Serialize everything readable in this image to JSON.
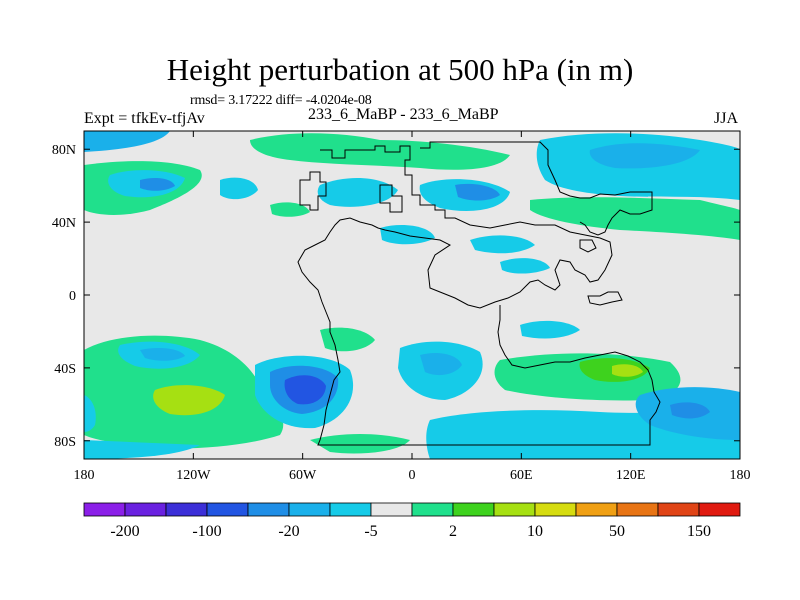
{
  "title": "Height perturbation at 500 hPa (in m)",
  "stats": "rmsd= 3.17222  diff= -4.0204e-08",
  "expt": "Expt = tfkEv-tfjAv",
  "case": "233_6_MaBP - 233_6_MaBP",
  "season": "JJA",
  "map": {
    "lon_range": [
      -180,
      180
    ],
    "lat_range": [
      -90,
      90
    ],
    "lon_ticks": [
      {
        "value": -180,
        "label": "180"
      },
      {
        "value": -120,
        "label": "120W"
      },
      {
        "value": -60,
        "label": "60W"
      },
      {
        "value": 0,
        "label": "0"
      },
      {
        "value": 60,
        "label": "60E"
      },
      {
        "value": 120,
        "label": "120E"
      },
      {
        "value": 180,
        "label": "180"
      }
    ],
    "lat_ticks": [
      {
        "value": 80,
        "label": "80N"
      },
      {
        "value": 40,
        "label": "40N"
      },
      {
        "value": 0,
        "label": "0"
      },
      {
        "value": -40,
        "label": "40S"
      },
      {
        "value": -80,
        "label": "80S"
      }
    ],
    "background_color": "#e8e8e8"
  },
  "colorbar": {
    "colors": [
      "#8b1fe8",
      "#6a21e0",
      "#3c2fd8",
      "#2255e2",
      "#1f8ee6",
      "#1ab0ea",
      "#16cbe8",
      "#e8e8e8",
      "#20e08c",
      "#3ed21e",
      "#a6e012",
      "#d6dc10",
      "#f0a014",
      "#e87414",
      "#e04416",
      "#e01a10"
    ],
    "labels": [
      {
        "after_box": 1,
        "text": "-200"
      },
      {
        "after_box": 3,
        "text": "-100"
      },
      {
        "after_box": 5,
        "text": "-20"
      },
      {
        "after_box": 7,
        "text": "-5"
      },
      {
        "after_box": 9,
        "text": "2"
      },
      {
        "after_box": 11,
        "text": "10"
      },
      {
        "after_box": 13,
        "text": "50"
      },
      {
        "after_box": 15,
        "text": "150"
      }
    ]
  }
}
